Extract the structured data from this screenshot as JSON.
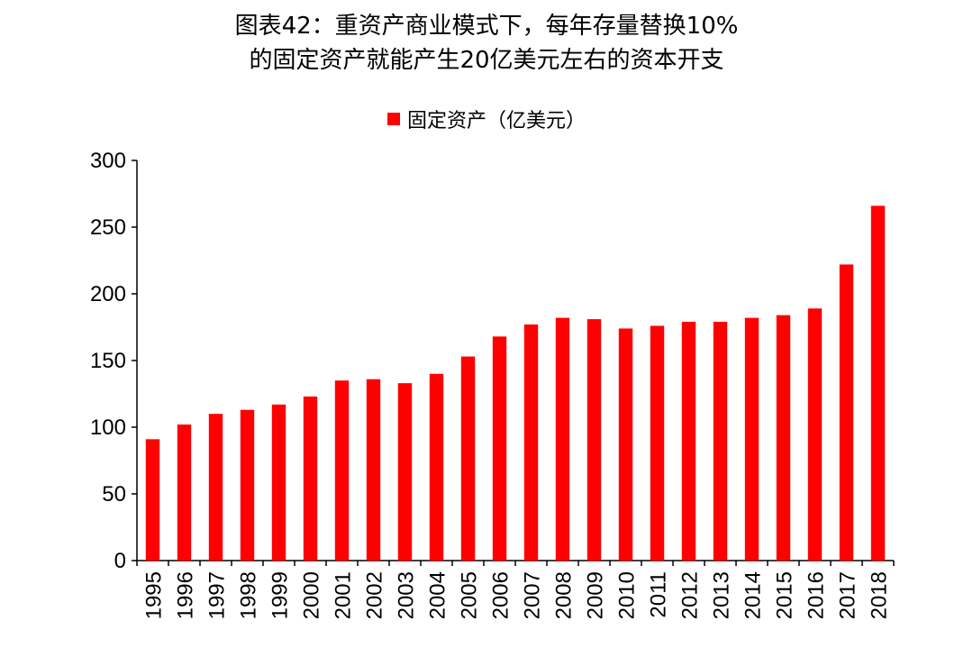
{
  "chart_data": {
    "type": "bar",
    "title_line1": "图表42：重资产商业模式下，每年存量替换10%",
    "title_line2": "的固定资产就能产生20亿美元左右的资本开支",
    "legend": {
      "label": "固定资产（亿美元）",
      "position": "top-center"
    },
    "categories": [
      "1995",
      "1996",
      "1997",
      "1998",
      "1999",
      "2000",
      "2001",
      "2002",
      "2003",
      "2004",
      "2005",
      "2006",
      "2007",
      "2008",
      "2009",
      "2010",
      "2011",
      "2012",
      "2013",
      "2014",
      "2015",
      "2016",
      "2017",
      "2018"
    ],
    "series": [
      {
        "name": "固定资产（亿美元）",
        "color": "#ff0000",
        "values": [
          91,
          102,
          110,
          113,
          117,
          123,
          135,
          136,
          133,
          140,
          153,
          168,
          177,
          182,
          181,
          174,
          176,
          179,
          179,
          182,
          184,
          189,
          222,
          266
        ]
      }
    ],
    "y_ticks": [
      "0",
      "50",
      "100",
      "150",
      "200",
      "250",
      "300"
    ],
    "ylim": [
      0,
      300
    ],
    "grid": false,
    "xlabel": "",
    "ylabel": ""
  }
}
